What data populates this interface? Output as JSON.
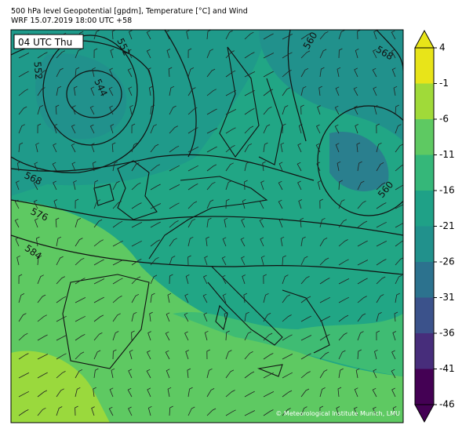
{
  "header": {
    "line1": "500 hPa level Geopotential [gpdm], Temperature [°C] and Wind",
    "line2": "WRF 15.07.2019 18:00 UTC +58"
  },
  "map": {
    "time_label": "04 UTC Thu",
    "contour_labels": [
      552,
      552,
      544,
      560,
      568,
      560,
      568,
      576,
      584
    ],
    "copyright": "© Meteorological Institute Munich, LMU"
  },
  "colorbar": {
    "ticks": [
      4,
      -1,
      -6,
      -11,
      -16,
      -21,
      -26,
      -31,
      -36,
      -41,
      -46
    ],
    "colors": [
      "#e8e419",
      "#a0da39",
      "#5ec962",
      "#35b779",
      "#1fa187",
      "#21918c",
      "#2c728e",
      "#3b528b",
      "#472d7b",
      "#440154"
    ]
  }
}
